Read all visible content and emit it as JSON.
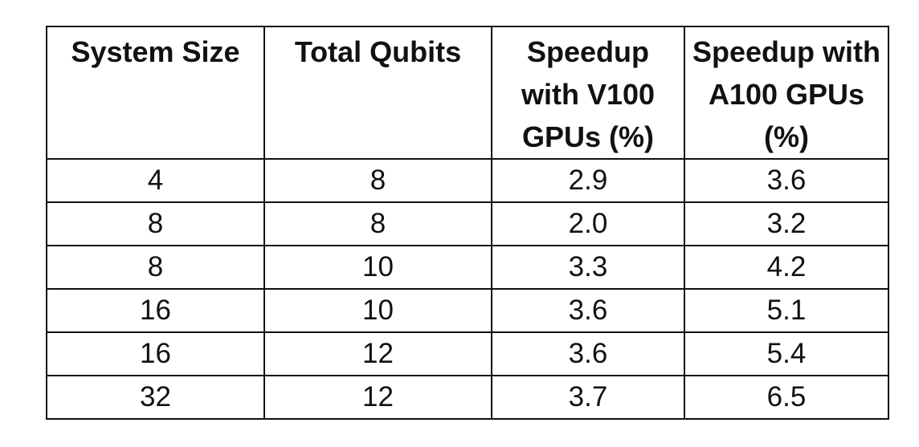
{
  "table": {
    "headers": [
      "System Size",
      "Total Qubits",
      "Speedup with V100 GPUs (%)",
      "Speedup with A100 GPUs (%)"
    ],
    "rows": [
      [
        "4",
        "8",
        "2.9",
        "3.6"
      ],
      [
        "8",
        "8",
        "2.0",
        "3.2"
      ],
      [
        "8",
        "10",
        "3.3",
        "4.2"
      ],
      [
        "16",
        "10",
        "3.6",
        "5.1"
      ],
      [
        "16",
        "12",
        "3.6",
        "5.4"
      ],
      [
        "32",
        "12",
        "3.7",
        "6.5"
      ]
    ]
  }
}
